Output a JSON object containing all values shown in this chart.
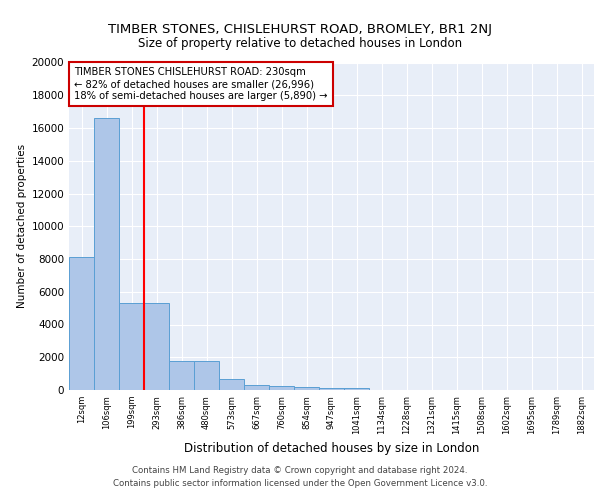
{
  "title": "TIMBER STONES, CHISLEHURST ROAD, BROMLEY, BR1 2NJ",
  "subtitle": "Size of property relative to detached houses in London",
  "xlabel": "Distribution of detached houses by size in London",
  "ylabel": "Number of detached properties",
  "categories": [
    "12sqm",
    "106sqm",
    "199sqm",
    "293sqm",
    "386sqm",
    "480sqm",
    "573sqm",
    "667sqm",
    "760sqm",
    "854sqm",
    "947sqm",
    "1041sqm",
    "1134sqm",
    "1228sqm",
    "1321sqm",
    "1415sqm",
    "1508sqm",
    "1602sqm",
    "1695sqm",
    "1789sqm",
    "1882sqm"
  ],
  "values": [
    8100,
    16600,
    5300,
    5300,
    1750,
    1750,
    700,
    300,
    250,
    200,
    150,
    150,
    0,
    0,
    0,
    0,
    0,
    0,
    0,
    0,
    0
  ],
  "bar_color": "#aec6e8",
  "bar_edge_color": "#5a9fd4",
  "background_color": "#e8eef8",
  "grid_color": "#ffffff",
  "red_line_x": 2.5,
  "annotation_text": "TIMBER STONES CHISLEHURST ROAD: 230sqm\n← 82% of detached houses are smaller (26,996)\n18% of semi-detached houses are larger (5,890) →",
  "annotation_box_color": "#ffffff",
  "annotation_border_color": "#cc0000",
  "footer_text": "Contains HM Land Registry data © Crown copyright and database right 2024.\nContains public sector information licensed under the Open Government Licence v3.0.",
  "ylim": [
    0,
    20000
  ],
  "yticks": [
    0,
    2000,
    4000,
    6000,
    8000,
    10000,
    12000,
    14000,
    16000,
    18000,
    20000
  ]
}
